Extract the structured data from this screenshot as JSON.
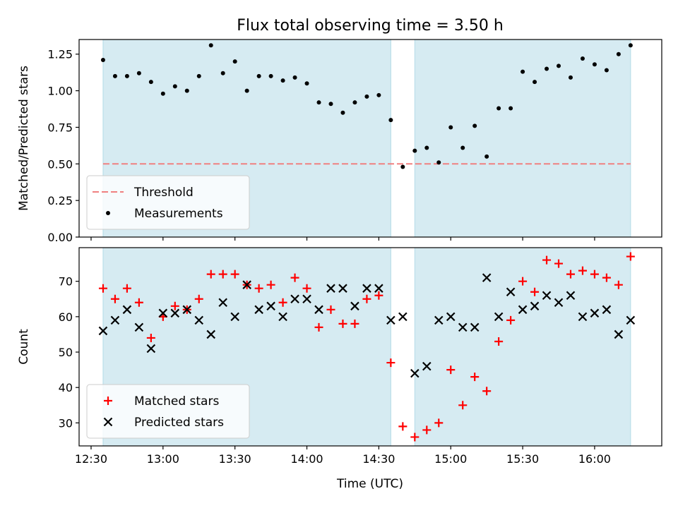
{
  "chart_data": [
    {
      "type": "scatter",
      "title": "Flux total observing time = 3.50 h",
      "ylabel": "Matched/Predicted stars",
      "xlabel": "",
      "xlim": [
        "12:25",
        "16:28"
      ],
      "ylim": [
        0,
        1.35
      ],
      "yticks": [
        "0.00",
        "0.25",
        "0.50",
        "0.75",
        "1.00",
        "1.25"
      ],
      "ytick_values": [
        0,
        0.25,
        0.5,
        0.75,
        1.0,
        1.25
      ],
      "legend_position": "lower-left",
      "shaded_intervals": [
        [
          "12:35",
          "14:35"
        ],
        [
          "14:45",
          "16:15"
        ]
      ],
      "shade_color": "#add8e6",
      "threshold": {
        "name": "Threshold",
        "value": 0.5,
        "x_range": [
          "12:35",
          "16:15"
        ],
        "color": "#f08080",
        "style": "dashed"
      },
      "series": [
        {
          "name": "Measurements",
          "marker": "dot",
          "color": "#000000",
          "x": [
            "12:35",
            "12:40",
            "12:45",
            "12:50",
            "12:55",
            "13:00",
            "13:05",
            "13:10",
            "13:15",
            "13:20",
            "13:25",
            "13:30",
            "13:35",
            "13:40",
            "13:45",
            "13:50",
            "13:55",
            "14:00",
            "14:05",
            "14:10",
            "14:15",
            "14:20",
            "14:25",
            "14:30",
            "14:35",
            "14:40",
            "14:45",
            "14:50",
            "14:55",
            "15:00",
            "15:05",
            "15:10",
            "15:15",
            "15:20",
            "15:25",
            "15:30",
            "15:35",
            "15:40",
            "15:45",
            "15:50",
            "15:55",
            "16:00",
            "16:05",
            "16:10",
            "16:15"
          ],
          "y": [
            1.21,
            1.1,
            1.1,
            1.12,
            1.06,
            0.98,
            1.03,
            1.0,
            1.1,
            1.31,
            1.12,
            1.2,
            1.0,
            1.1,
            1.1,
            1.07,
            1.09,
            1.05,
            0.92,
            0.91,
            0.85,
            0.92,
            0.96,
            0.97,
            0.8,
            0.48,
            0.59,
            0.61,
            0.51,
            0.75,
            0.61,
            0.76,
            0.55,
            0.88,
            0.88,
            1.13,
            1.06,
            1.15,
            1.17,
            1.09,
            1.22,
            1.18,
            1.14,
            1.25,
            1.31
          ]
        }
      ]
    },
    {
      "type": "scatter",
      "title": "",
      "ylabel": "Count",
      "xlabel": "Time (UTC)",
      "xlim": [
        "12:25",
        "16:28"
      ],
      "ylim": [
        23.5,
        79.5
      ],
      "yticks": [
        "30",
        "40",
        "50",
        "60",
        "70"
      ],
      "ytick_values": [
        30,
        40,
        50,
        60,
        70
      ],
      "xticks": [
        "12:30",
        "13:00",
        "13:30",
        "14:00",
        "14:30",
        "15:00",
        "15:30",
        "16:00"
      ],
      "legend_position": "lower-left",
      "shaded_intervals": [
        [
          "12:35",
          "14:35"
        ],
        [
          "14:45",
          "16:15"
        ]
      ],
      "shade_color": "#add8e6",
      "series": [
        {
          "name": "Matched stars",
          "marker": "plus",
          "color": "#ff0000",
          "x": [
            "12:35",
            "12:40",
            "12:45",
            "12:50",
            "12:55",
            "13:00",
            "13:05",
            "13:10",
            "13:15",
            "13:20",
            "13:25",
            "13:30",
            "13:35",
            "13:40",
            "13:45",
            "13:50",
            "13:55",
            "14:00",
            "14:05",
            "14:10",
            "14:15",
            "14:20",
            "14:25",
            "14:30",
            "14:35",
            "14:40",
            "14:45",
            "14:50",
            "14:55",
            "15:00",
            "15:05",
            "15:10",
            "15:15",
            "15:20",
            "15:25",
            "15:30",
            "15:35",
            "15:40",
            "15:45",
            "15:50",
            "15:55",
            "16:00",
            "16:05",
            "16:10",
            "16:15"
          ],
          "y": [
            68,
            65,
            68,
            64,
            54,
            60,
            63,
            62,
            65,
            72,
            72,
            72,
            69,
            68,
            69,
            64,
            71,
            68,
            57,
            62,
            58,
            58,
            65,
            66,
            47,
            29,
            26,
            28,
            30,
            45,
            35,
            43,
            39,
            53,
            59,
            70,
            67,
            76,
            75,
            72,
            73,
            72,
            71,
            69,
            77
          ]
        },
        {
          "name": "Predicted stars",
          "marker": "x",
          "color": "#000000",
          "x": [
            "12:35",
            "12:40",
            "12:45",
            "12:50",
            "12:55",
            "13:00",
            "13:05",
            "13:10",
            "13:15",
            "13:20",
            "13:25",
            "13:30",
            "13:35",
            "13:40",
            "13:45",
            "13:50",
            "13:55",
            "14:00",
            "14:05",
            "14:10",
            "14:15",
            "14:20",
            "14:25",
            "14:30",
            "14:35",
            "14:40",
            "14:45",
            "14:50",
            "14:55",
            "15:00",
            "15:05",
            "15:10",
            "15:15",
            "15:20",
            "15:25",
            "15:30",
            "15:35",
            "15:40",
            "15:45",
            "15:50",
            "15:55",
            "16:00",
            "16:05",
            "16:10",
            "16:15"
          ],
          "y": [
            56,
            59,
            62,
            57,
            51,
            61,
            61,
            62,
            59,
            55,
            64,
            60,
            69,
            62,
            63,
            60,
            65,
            65,
            62,
            68,
            68,
            63,
            68,
            68,
            59,
            60,
            44,
            46,
            59,
            60,
            57,
            57,
            71,
            60,
            67,
            62,
            63,
            66,
            64,
            66,
            60,
            61,
            62,
            55,
            59
          ]
        }
      ]
    }
  ]
}
